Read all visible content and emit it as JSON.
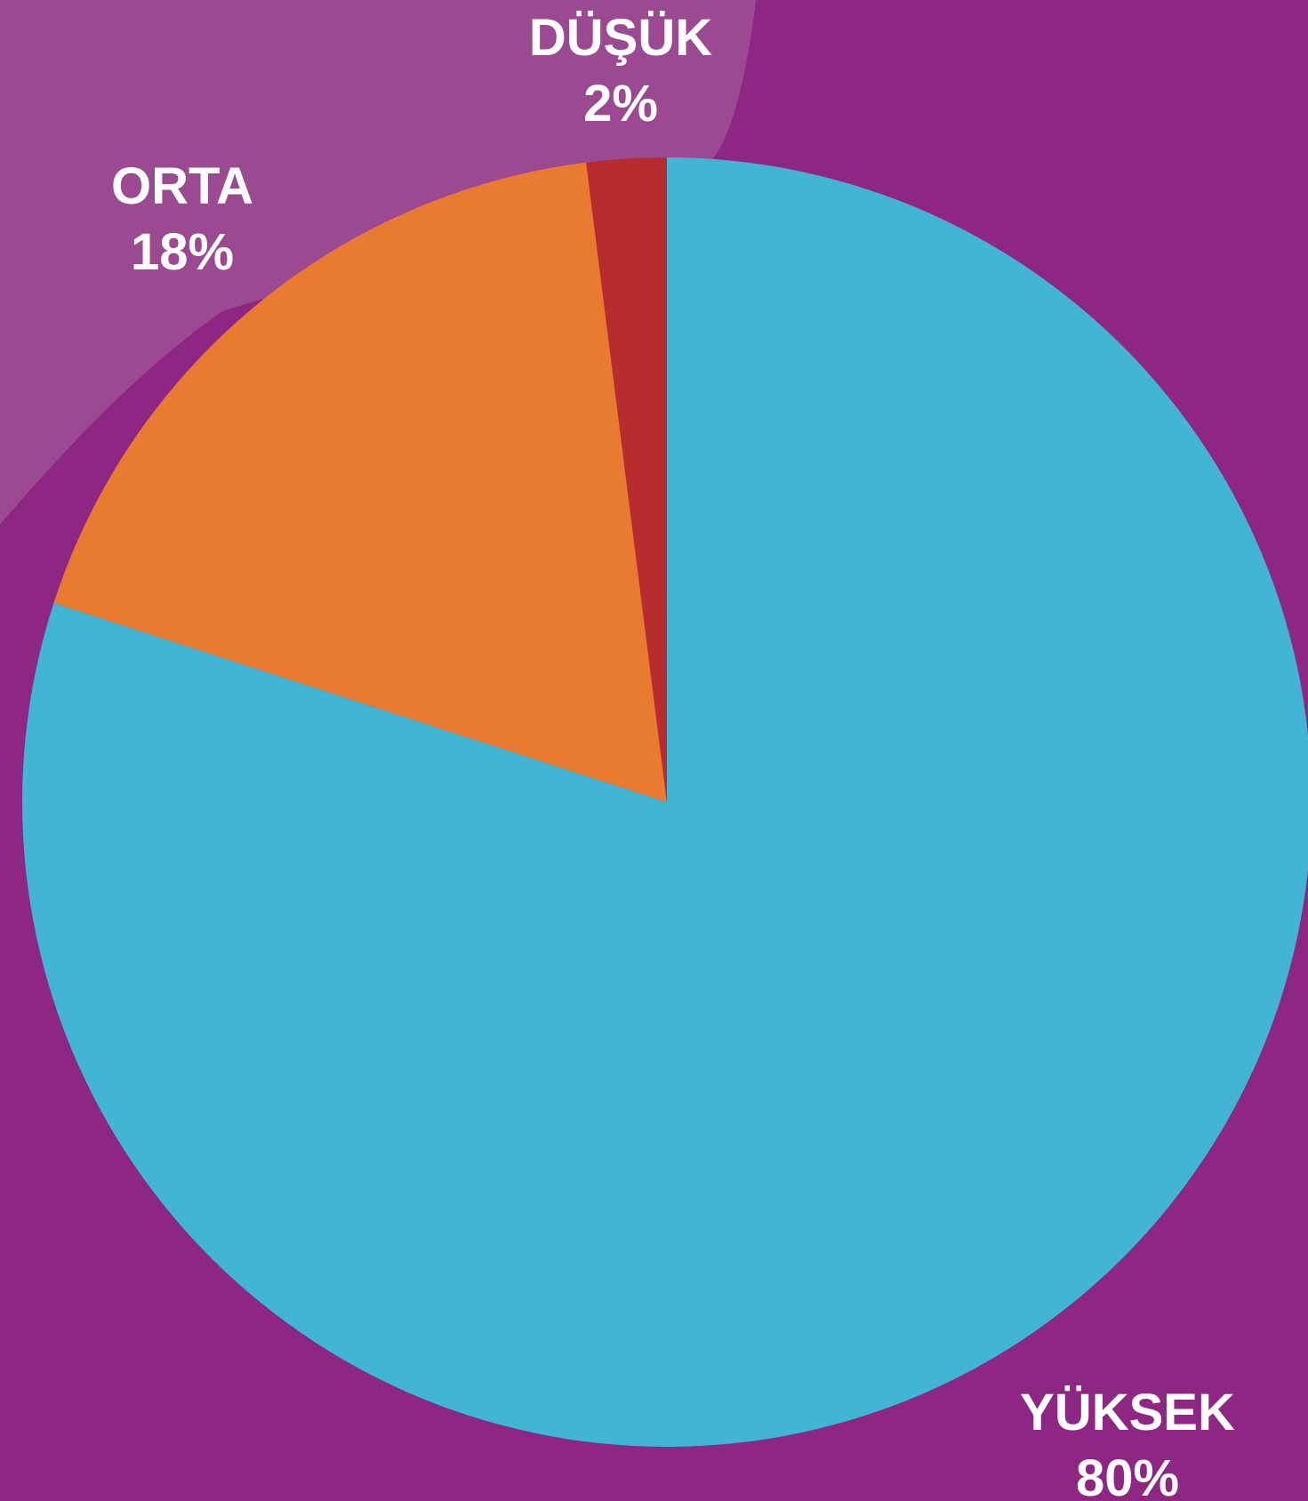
{
  "colors": {
    "background": "#8e2783",
    "background_highlight": "#9b4a91"
  },
  "chart_data": {
    "type": "pie",
    "title": "",
    "start": "top",
    "direction": "clockwise",
    "slices": [
      {
        "name": "YÜKSEK",
        "value": 80,
        "value_label": "80%",
        "color": "#42b4d4"
      },
      {
        "name": "ORTA",
        "value": 18,
        "value_label": "18%",
        "color": "#e97b30"
      },
      {
        "name": "DÜŞÜK",
        "value": 2,
        "value_label": "2%",
        "color": "#b72c2e"
      }
    ]
  }
}
